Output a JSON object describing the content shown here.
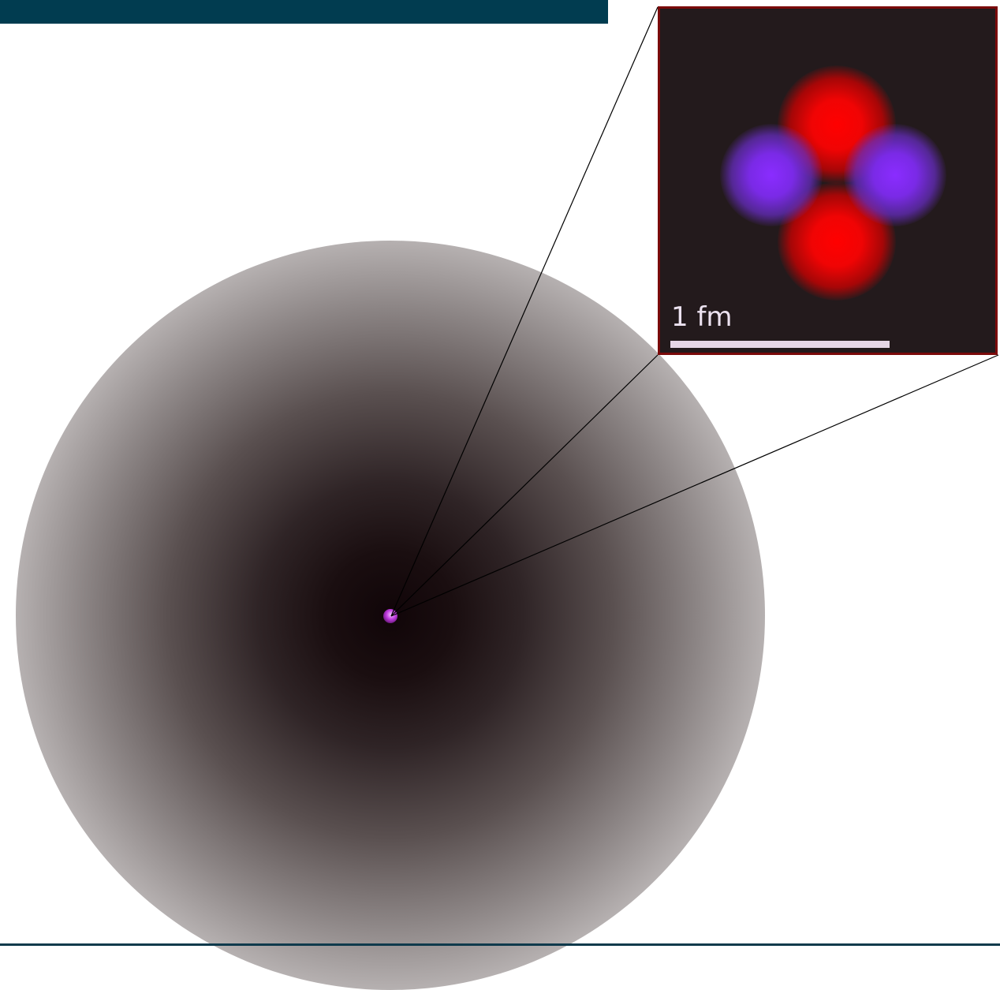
{
  "colors": {
    "banner": "#013c50",
    "inset_border": "#7a0a0a",
    "inset_background": "#231a1c",
    "proton": "#ff0000",
    "neutron": "#8a2cff",
    "scale_bar": "#e6d6e6"
  },
  "inset": {
    "scale_label": "1 fm"
  }
}
